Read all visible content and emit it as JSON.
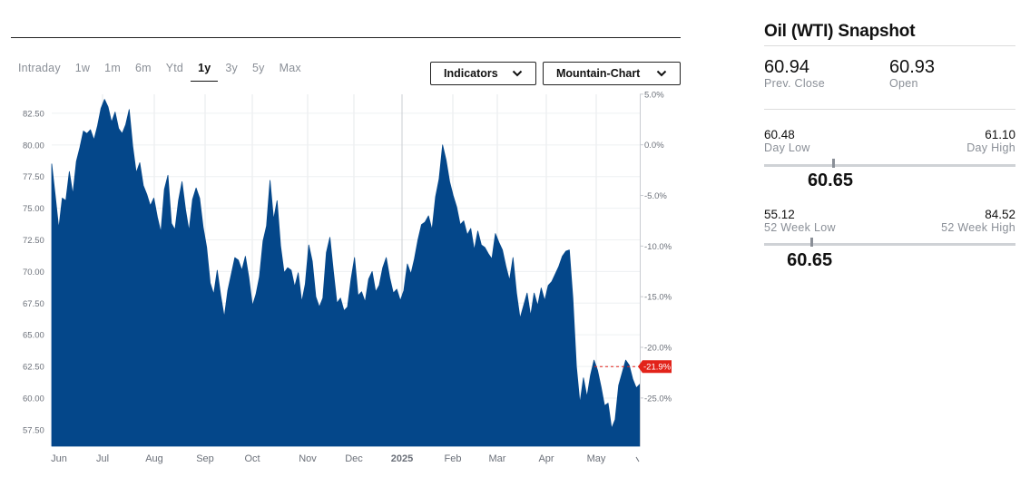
{
  "toolbar": {
    "ranges": [
      "Intraday",
      "1w",
      "1m",
      "6m",
      "Ytd",
      "1y",
      "3y",
      "5y",
      "Max"
    ],
    "active_range": "1y",
    "indicators_label": "Indicators",
    "chart_type_label": "Mountain-Chart",
    "chevron_icon": "chevron-down-icon"
  },
  "snapshot": {
    "title": "Oil (WTI) Snapshot",
    "prev_close": {
      "value": "60.94",
      "label": "Prev. Close"
    },
    "open": {
      "value": "60.93",
      "label": "Open"
    },
    "day_low": {
      "value": "60.48",
      "label": "Day Low"
    },
    "day_high": {
      "value": "61.10",
      "label": "Day High"
    },
    "day_current": "60.65",
    "week52_low": {
      "value": "55.12",
      "label": "52 Week Low"
    },
    "week52_high": {
      "value": "84.52",
      "label": "52 Week High"
    },
    "week52_current": "60.65"
  },
  "chart_data": {
    "type": "area",
    "xlabel": "",
    "ylabel": "",
    "ylim": [
      56.2,
      84.0
    ],
    "left_axis_ticks": [
      "82.50",
      "80.00",
      "77.50",
      "75.00",
      "72.50",
      "70.00",
      "67.50",
      "65.00",
      "62.50",
      "60.00",
      "57.50"
    ],
    "right_axis_ticks": [
      "5.0%",
      "0.0%",
      "-5.0%",
      "-10.0%",
      "-15.0%",
      "-20.0%",
      "-25.0%"
    ],
    "x_ticks": [
      "Jun",
      "Jul",
      "Aug",
      "Sep",
      "Oct",
      "Nov",
      "Dec",
      "2025",
      "Feb",
      "Mar",
      "Apr",
      "May"
    ],
    "current_change_label": "-21.9%",
    "fill_color": "#04478a",
    "badge_color": "#e2231a",
    "series": [
      {
        "values": [
          78.5,
          76.0,
          73.4,
          75.8,
          75.6,
          77.9,
          76.1,
          78.7,
          79.8,
          81.1,
          80.9,
          81.2,
          80.4,
          81.5,
          82.9,
          83.6,
          83.0,
          81.8,
          82.6,
          81.3,
          80.9,
          81.6,
          82.8,
          79.9,
          77.8,
          78.6,
          76.8,
          76.1,
          75.2,
          75.8,
          74.3,
          73.1,
          76.5,
          77.6,
          73.8,
          73.3,
          75.6,
          77.1,
          74.9,
          73.2,
          75.7,
          76.6,
          75.8,
          73.5,
          71.9,
          69.1,
          68.2,
          70.1,
          68.1,
          66.4,
          68.5,
          69.8,
          71.1,
          70.9,
          70.1,
          71.2,
          69.5,
          67.3,
          68.2,
          69.6,
          72.4,
          73.6,
          77.2,
          74.1,
          75.6,
          72.0,
          69.9,
          70.3,
          70.1,
          68.8,
          69.9,
          67.6,
          69.0,
          72.1,
          70.8,
          68.0,
          67.2,
          67.9,
          71.5,
          72.7,
          70.0,
          67.5,
          67.9,
          66.9,
          67.2,
          69.4,
          71.1,
          68.1,
          68.4,
          67.6,
          69.4,
          70.0,
          68.4,
          68.9,
          70.3,
          71.1,
          69.5,
          68.3,
          68.6,
          67.7,
          68.5,
          70.6,
          69.8,
          71.0,
          72.5,
          73.7,
          73.9,
          74.4,
          73.3,
          75.9,
          77.3,
          80.0,
          78.8,
          77.1,
          76.0,
          75.1,
          73.7,
          74.0,
          72.9,
          73.4,
          71.7,
          73.2,
          72.1,
          71.9,
          71.4,
          71.0,
          73.0,
          72.3,
          71.7,
          70.4,
          69.3,
          71.1,
          68.3,
          66.3,
          67.3,
          68.3,
          66.5,
          68.3,
          67.3,
          68.7,
          67.7,
          68.9,
          69.2,
          69.8,
          70.4,
          71.2,
          71.6,
          71.7,
          67.9,
          62.5,
          59.6,
          61.6,
          60.1,
          61.8,
          63.0,
          62.2,
          60.9,
          59.4,
          59.6,
          57.6,
          58.3,
          61.0,
          62.0,
          63.0,
          62.6,
          61.5,
          60.8,
          61.1
        ]
      }
    ]
  }
}
